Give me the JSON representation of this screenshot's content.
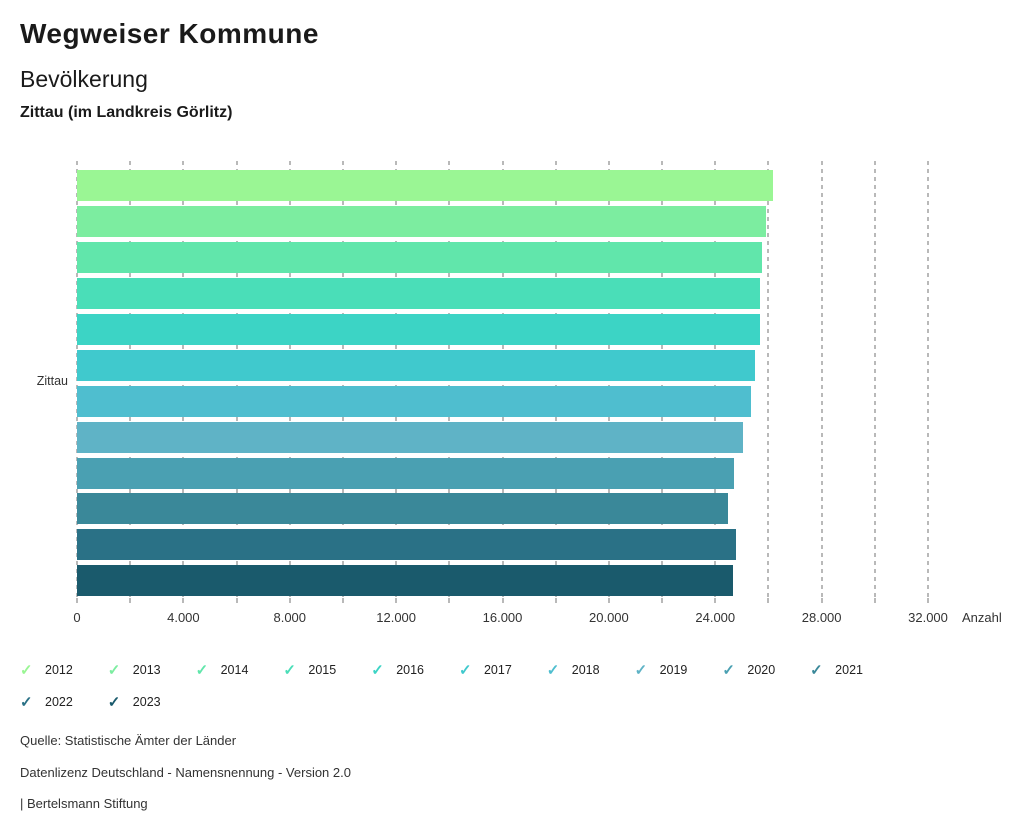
{
  "header": {
    "title": "Wegweiser Kommune",
    "subtitle": "Bevölkerung",
    "region": "Zittau (im Landkreis Görlitz)"
  },
  "chart_data": {
    "type": "bar",
    "orientation": "horizontal",
    "title": "Bevölkerung",
    "subtitle": "Zittau (im Landkreis Görlitz)",
    "category": "Zittau",
    "series": [
      {
        "name": "2012",
        "value": 26160,
        "color": "#9AF694"
      },
      {
        "name": "2013",
        "value": 25895,
        "color": "#7CEDA0"
      },
      {
        "name": "2014",
        "value": 25745,
        "color": "#61E6AB"
      },
      {
        "name": "2015",
        "value": 25675,
        "color": "#4ADEB8"
      },
      {
        "name": "2016",
        "value": 25690,
        "color": "#3CD4C5"
      },
      {
        "name": "2017",
        "value": 25505,
        "color": "#40C9CD"
      },
      {
        "name": "2018",
        "value": 25350,
        "color": "#4FBECF"
      },
      {
        "name": "2019",
        "value": 25045,
        "color": "#5FB3C6"
      },
      {
        "name": "2020",
        "value": 24710,
        "color": "#4AA0B2"
      },
      {
        "name": "2021",
        "value": 24465,
        "color": "#3A8899"
      },
      {
        "name": "2022",
        "value": 24775,
        "color": "#2A7186"
      },
      {
        "name": "2023",
        "value": 24675,
        "color": "#1A5A6C"
      }
    ],
    "xlim": [
      0,
      32000
    ],
    "gridline_step": 2000,
    "label_step": 4000,
    "x_tick_labels": [
      "0",
      "4.000",
      "8.000",
      "12.000",
      "16.000",
      "20.000",
      "24.000",
      "28.000",
      "32.000"
    ],
    "x_axis_unit": "Anzahl",
    "grid": true,
    "legend_position": "bottom",
    "legend_icon": "check-icon"
  },
  "footer": {
    "source": "Quelle: Statistische Ämter der Länder",
    "license": "Datenlizenz Deutschland - Namensnennung - Version 2.0",
    "attribution": "| Bertelsmann Stiftung"
  }
}
